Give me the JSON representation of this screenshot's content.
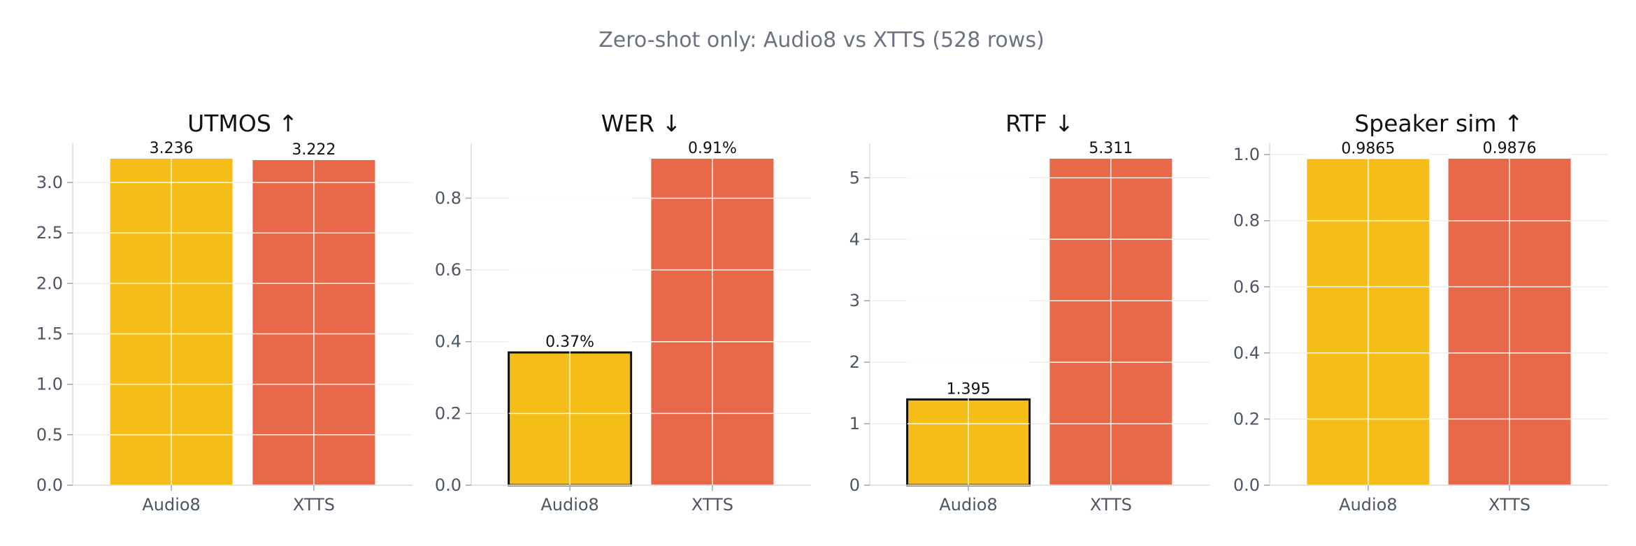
{
  "title": "Zero-shot only: Audio8 vs XTTS (528 rows)",
  "colors": {
    "Audio8": "#f5bd18",
    "XTTS": "#e8684a",
    "best_outline": "#111111",
    "grid": "#ebebeb",
    "axis": "#dddddd"
  },
  "chart_data": [
    {
      "type": "bar",
      "title": "UTMOS ↑",
      "categories": [
        "Audio8",
        "XTTS"
      ],
      "values": [
        3.236,
        3.222
      ],
      "value_labels": [
        "3.236",
        "3.222"
      ],
      "ylim": [
        0,
        3.236
      ],
      "yticks": [
        0.0,
        0.5,
        1.0,
        1.5,
        2.0,
        2.5,
        3.0
      ],
      "ytick_labels": [
        "0.0",
        "0.5",
        "1.0",
        "1.5",
        "2.0",
        "2.5",
        "3.0"
      ],
      "highlighted": null,
      "grid": true
    },
    {
      "type": "bar",
      "title": "WER ↓",
      "categories": [
        "Audio8",
        "XTTS"
      ],
      "values": [
        0.37,
        0.91
      ],
      "value_labels": [
        "0.37%",
        "0.91%"
      ],
      "ylim": [
        0,
        0.91
      ],
      "yticks": [
        0.0,
        0.2,
        0.4,
        0.6,
        0.8
      ],
      "ytick_labels": [
        "0.0",
        "0.2",
        "0.4",
        "0.6",
        "0.8"
      ],
      "highlighted": "Audio8",
      "grid": true
    },
    {
      "type": "bar",
      "title": "RTF ↓",
      "categories": [
        "Audio8",
        "XTTS"
      ],
      "values": [
        1.395,
        5.311
      ],
      "value_labels": [
        "1.395",
        "5.311"
      ],
      "ylim": [
        0,
        5.311
      ],
      "yticks": [
        0,
        1,
        2,
        3,
        4,
        5
      ],
      "ytick_labels": [
        "0",
        "1",
        "2",
        "3",
        "4",
        "5"
      ],
      "highlighted": "Audio8",
      "grid": true
    },
    {
      "type": "bar",
      "title": "Speaker sim ↑",
      "categories": [
        "Audio8",
        "XTTS"
      ],
      "values": [
        0.9865,
        0.9876
      ],
      "value_labels": [
        "0.9865",
        "0.9876"
      ],
      "ylim": [
        0,
        0.9876
      ],
      "yticks": [
        0.0,
        0.2,
        0.4,
        0.6,
        0.8,
        1.0
      ],
      "ytick_labels": [
        "0.0",
        "0.2",
        "0.4",
        "0.6",
        "0.8",
        "1.0"
      ],
      "highlighted": null,
      "grid": true
    }
  ]
}
